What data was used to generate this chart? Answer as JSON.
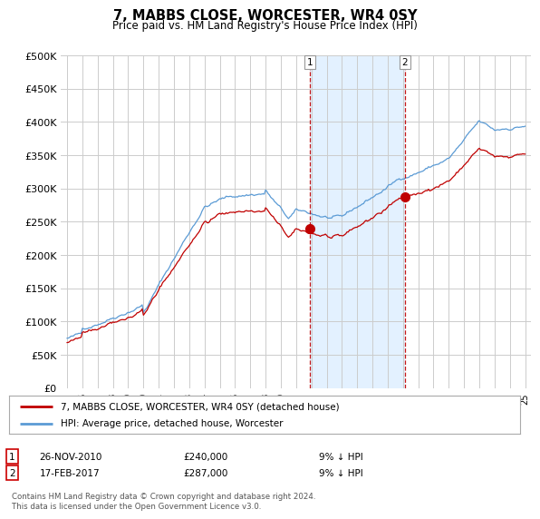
{
  "title": "7, MABBS CLOSE, WORCESTER, WR4 0SY",
  "subtitle": "Price paid vs. HM Land Registry's House Price Index (HPI)",
  "ylim": [
    0,
    500000
  ],
  "yticks": [
    0,
    50000,
    100000,
    150000,
    200000,
    250000,
    300000,
    350000,
    400000,
    450000,
    500000
  ],
  "ytick_labels": [
    "£0",
    "£50K",
    "£100K",
    "£150K",
    "£200K",
    "£250K",
    "£300K",
    "£350K",
    "£400K",
    "£450K",
    "£500K"
  ],
  "hpi_color": "#5b9bd5",
  "price_color": "#c00000",
  "shade_color": "#ddeeff",
  "grid_color": "#cccccc",
  "background_color": "#ffffff",
  "transaction1": {
    "label": "1",
    "date": "26-NOV-2010",
    "price": "£240,000",
    "hpi_note": "9% ↓ HPI"
  },
  "transaction2": {
    "label": "2",
    "date": "17-FEB-2017",
    "price": "£287,000",
    "hpi_note": "9% ↓ HPI"
  },
  "legend_label1": "7, MABBS CLOSE, WORCESTER, WR4 0SY (detached house)",
  "legend_label2": "HPI: Average price, detached house, Worcester",
  "footer": "Contains HM Land Registry data © Crown copyright and database right 2024.\nThis data is licensed under the Open Government Licence v3.0.",
  "marker1_date": 2010.92,
  "marker1_value": 240000,
  "marker2_date": 2017.12,
  "marker2_value": 287000,
  "vline1_date": 2010.92,
  "vline2_date": 2017.12
}
